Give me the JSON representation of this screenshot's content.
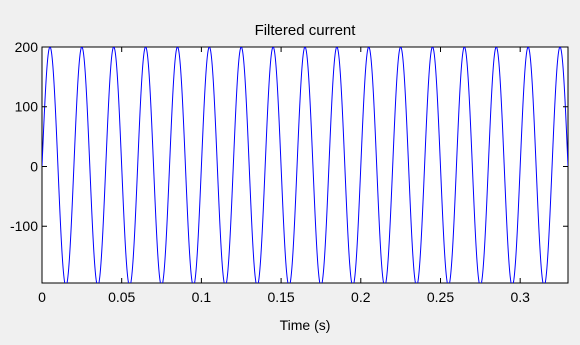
{
  "chart_data": {
    "type": "line",
    "title": "Filtered current",
    "xlabel": "Time (s)",
    "ylabel": "",
    "xlim": [
      0,
      0.33
    ],
    "ylim": [
      -195,
      200
    ],
    "xticks": [
      0,
      0.05,
      0.1,
      0.15,
      0.2,
      0.25,
      0.3
    ],
    "xtick_labels": [
      "0",
      "0.05",
      "0.1",
      "0.15",
      "0.2",
      "0.25",
      "0.3"
    ],
    "yticks": [
      -100,
      0,
      100,
      200
    ],
    "ytick_labels": [
      "-100",
      "0",
      "100",
      "200"
    ],
    "grid": false,
    "series": [
      {
        "amplitude": 200,
        "frequency_hz": 50,
        "phase": "sine",
        "color": "#0000ff"
      }
    ],
    "colors": {
      "background": "#f0f0f0",
      "axes_background": "#ffffff",
      "line": "#0000ff"
    }
  }
}
